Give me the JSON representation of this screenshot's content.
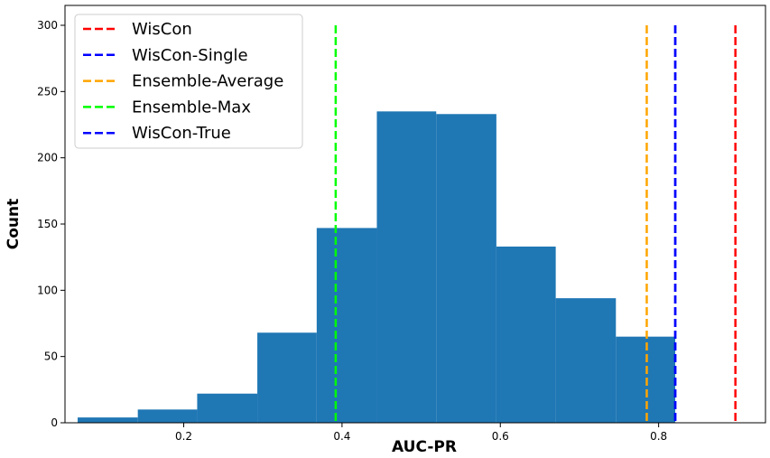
{
  "chart_data": {
    "type": "bar",
    "subtype": "histogram",
    "xlabel": "AUC-PR",
    "ylabel": "Count",
    "xlim": [
      0.05,
      0.935
    ],
    "ylim": [
      0,
      315
    ],
    "x_ticks": [
      0.2,
      0.4,
      0.6,
      0.8
    ],
    "x_tick_labels": [
      "0.2",
      "0.4",
      "0.6",
      "0.8"
    ],
    "y_ticks": [
      0,
      50,
      100,
      150,
      200,
      250,
      300
    ],
    "y_tick_labels": [
      "0",
      "50",
      "100",
      "150",
      "200",
      "250",
      "300"
    ],
    "bar_color": "#1f77b4",
    "bins": [
      {
        "x0": 0.066,
        "x1": 0.142,
        "count": 4
      },
      {
        "x0": 0.142,
        "x1": 0.217,
        "count": 10
      },
      {
        "x0": 0.217,
        "x1": 0.293,
        "count": 22
      },
      {
        "x0": 0.293,
        "x1": 0.368,
        "count": 68
      },
      {
        "x0": 0.368,
        "x1": 0.444,
        "count": 147
      },
      {
        "x0": 0.444,
        "x1": 0.519,
        "count": 235
      },
      {
        "x0": 0.519,
        "x1": 0.595,
        "count": 233
      },
      {
        "x0": 0.595,
        "x1": 0.67,
        "count": 133
      },
      {
        "x0": 0.67,
        "x1": 0.746,
        "count": 94
      },
      {
        "x0": 0.746,
        "x1": 0.821,
        "count": 65
      }
    ],
    "vlines": [
      {
        "name": "WisCon",
        "x": 0.897,
        "color": "#ff0000",
        "ymax": 300
      },
      {
        "name": "WisCon-Single",
        "x": 0.821,
        "color": "#0000ff",
        "ymax": 300
      },
      {
        "name": "Ensemble-Average",
        "x": 0.785,
        "color": "#ffa500",
        "ymax": 300
      },
      {
        "name": "Ensemble-Max",
        "x": 0.392,
        "color": "#00ff00",
        "ymax": 300
      },
      {
        "name": "WisCon-True",
        "x": 0.821,
        "color": "#0000ff",
        "ymax": 300
      }
    ],
    "legend": {
      "position": "upper-left",
      "entries": [
        {
          "label": "WisCon",
          "color": "#ff0000"
        },
        {
          "label": "WisCon-Single",
          "color": "#0000ff"
        },
        {
          "label": "Ensemble-Average",
          "color": "#ffa500"
        },
        {
          "label": "Ensemble-Max",
          "color": "#00ff00"
        },
        {
          "label": "WisCon-True",
          "color": "#0000ff"
        }
      ]
    },
    "grid": false
  }
}
